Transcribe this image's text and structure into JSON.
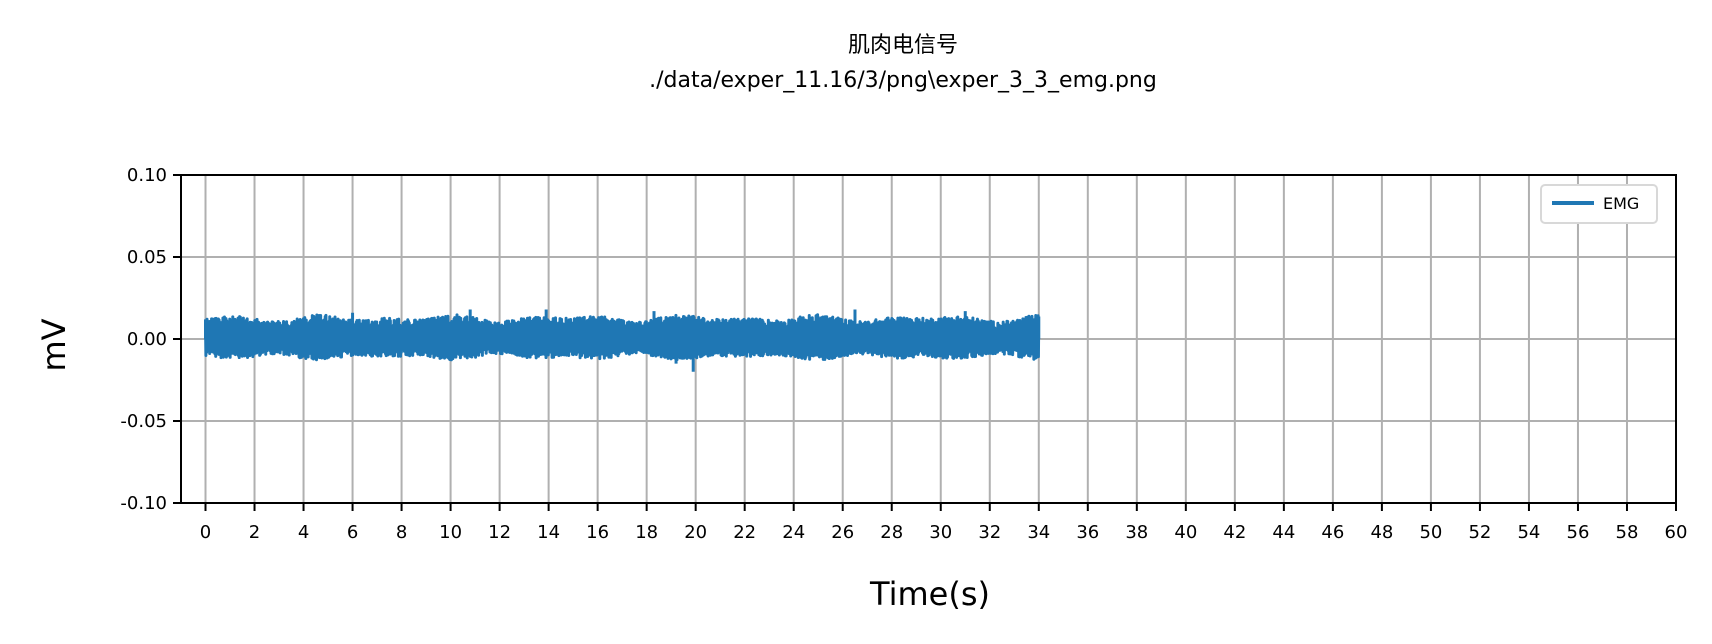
{
  "chart_data": {
    "type": "line",
    "title": "肌肉电信号",
    "subtitle": "./data/exper_11.16/3/png\\exper_3_3_emg.png",
    "xlabel": "Time(s)",
    "ylabel": "mV",
    "xlim": [
      -1,
      60
    ],
    "ylim": [
      -0.1,
      0.1
    ],
    "xticks": [
      0,
      2,
      4,
      6,
      8,
      10,
      12,
      14,
      16,
      18,
      20,
      22,
      24,
      26,
      28,
      30,
      32,
      34,
      36,
      38,
      40,
      42,
      44,
      46,
      48,
      50,
      52,
      54,
      56,
      58,
      60
    ],
    "xtick_labels": [
      "0",
      "2",
      "4",
      "6",
      "8",
      "10",
      "12",
      "14",
      "16",
      "18",
      "20",
      "22",
      "24",
      "26",
      "28",
      "30",
      "32",
      "34",
      "36",
      "38",
      "40",
      "42",
      "44",
      "46",
      "48",
      "50",
      "52",
      "54",
      "56",
      "58",
      "60"
    ],
    "yticks": [
      -0.1,
      -0.05,
      0.0,
      0.05,
      0.1
    ],
    "ytick_labels": [
      "-0.10",
      "-0.05",
      "0.00",
      "0.05",
      "0.10"
    ],
    "grid": true,
    "legend_position": "top-right",
    "series": [
      {
        "name": "EMG",
        "color": "#1f77b4",
        "x_range": [
          0,
          34
        ],
        "amplitude_range": [
          -0.013,
          0.015
        ],
        "peaks": [
          {
            "x": 0.0,
            "y": 0.012
          },
          {
            "x": 4.0,
            "y": 0.013
          },
          {
            "x": 6.0,
            "y": 0.016
          },
          {
            "x": 10.8,
            "y": 0.018
          },
          {
            "x": 13.9,
            "y": 0.018
          },
          {
            "x": 18.3,
            "y": 0.017
          },
          {
            "x": 19.9,
            "y": -0.02
          },
          {
            "x": 19.2,
            "y": -0.015
          },
          {
            "x": 26.5,
            "y": 0.018
          },
          {
            "x": 31.0,
            "y": 0.017
          },
          {
            "x": 34.0,
            "y": 0.013
          }
        ]
      }
    ]
  }
}
